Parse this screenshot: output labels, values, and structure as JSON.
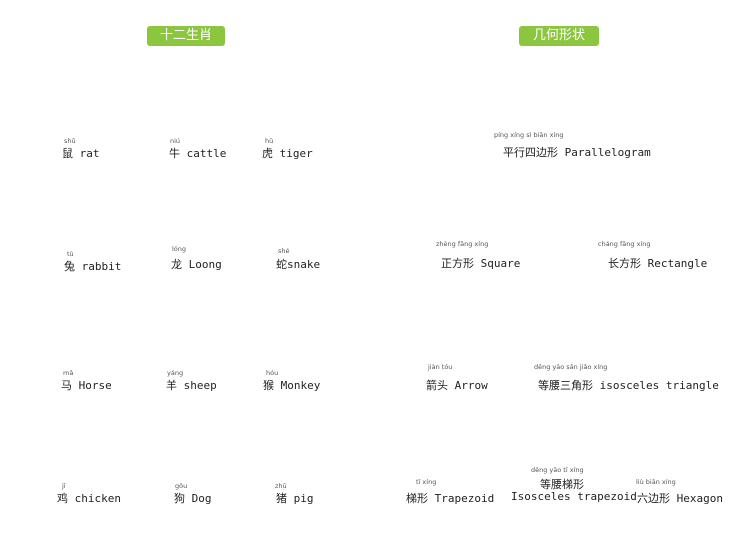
{
  "colors": {
    "header_bg": "#8cc63f",
    "red": "#e8402a",
    "orange": "#f39a1e",
    "yellow": "#fff200",
    "green": "#3cb04a",
    "blue": "#5b6fb6",
    "purple": "#8b3fa0",
    "grid": "#777777"
  },
  "headers": {
    "zodiac": "十二生肖",
    "shapes": "几何形状"
  },
  "zodiac": [
    {
      "pinyin": "shǔ",
      "label": "鼠 rat"
    },
    {
      "pinyin": "niú",
      "label": "牛 cattle"
    },
    {
      "pinyin": "hǔ",
      "label": "虎 tiger"
    },
    {
      "pinyin": "tù",
      "label": "兔 rabbit"
    },
    {
      "pinyin": "lóng",
      "label": "龙 Loong"
    },
    {
      "pinyin": "shé",
      "label": "蛇snake"
    },
    {
      "pinyin": "mǎ",
      "label": "马 Horse"
    },
    {
      "pinyin": "yáng",
      "label": "羊 sheep"
    },
    {
      "pinyin": "hóu",
      "label": "猴 Monkey"
    },
    {
      "pinyin": "jī",
      "label": "鸡 chicken"
    },
    {
      "pinyin": "gǒu",
      "label": "狗 Dog"
    },
    {
      "pinyin": "zhū",
      "label": "猪 pig"
    }
  ],
  "shapes": [
    {
      "pinyin": "píng xíng sì biān xíng",
      "label": "平行四边形  Parallelogram"
    },
    {
      "pinyin": "zhèng fāng xíng",
      "label": "正方形  Square"
    },
    {
      "pinyin": "cháng fāng xíng",
      "label": "长方形  Rectangle"
    },
    {
      "pinyin": "jiàn tóu",
      "label": "箭头  Arrow"
    },
    {
      "pinyin": "děng yāo sān jiǎo xíng",
      "label": "等腰三角形  isosceles triangle"
    },
    {
      "pinyin": "tī xíng",
      "label": "梯形 Trapezoid"
    },
    {
      "pinyin": "děng yāo tī xíng",
      "label": "等腰梯形"
    },
    {
      "pinyin": "",
      "label": "Isosceles trapezoid"
    },
    {
      "pinyin": "liù biān xíng",
      "label": "六边形  Hexagon"
    }
  ]
}
